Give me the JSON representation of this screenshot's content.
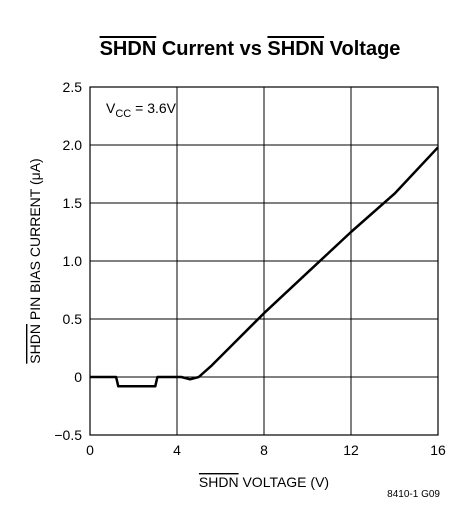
{
  "chart_data": {
    "type": "line",
    "title": [
      "SHDN",
      " Current vs ",
      "SHDN",
      " Voltage"
    ],
    "xlabel": [
      "SHDN",
      " VOLTAGE (V)"
    ],
    "ylabel": [
      "SHDN",
      " PIN BIAS CURRENT (μA)"
    ],
    "annotation": [
      "V",
      "CC",
      " = 3.6V"
    ],
    "footnote": "8410-1 G09",
    "x": [
      0,
      1.2,
      1.3,
      3.0,
      3.1,
      4.2,
      4.6,
      5.0,
      5.6,
      6.4,
      8,
      10,
      12,
      14,
      16
    ],
    "series": [
      {
        "name": "SHDN current",
        "color": "#000000",
        "values": [
          0,
          0,
          -0.08,
          -0.08,
          0,
          0,
          -0.02,
          0,
          0.1,
          0.25,
          0.55,
          0.9,
          1.25,
          1.58,
          1.98
        ]
      }
    ],
    "xlim": [
      0,
      16
    ],
    "ylim": [
      -0.5,
      2.5
    ],
    "xticks": [
      0,
      4,
      8,
      12,
      16
    ],
    "yticks": [
      {
        "value": -0.5,
        "label": "−0.5"
      },
      0,
      0.5,
      {
        "value": 1.0,
        "label": "1.0"
      },
      1.5,
      {
        "value": 2.0,
        "label": "2.0"
      },
      2.5
    ],
    "grid": true
  }
}
